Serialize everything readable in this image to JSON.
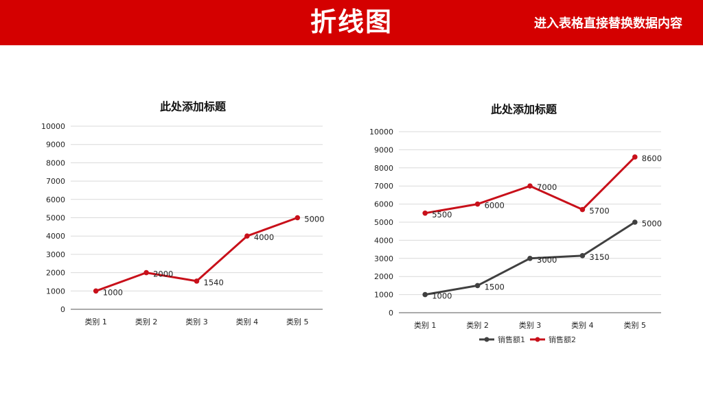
{
  "header": {
    "title": "折线图",
    "subtitle": "进入表格直接替换数据内容",
    "bg_color": "#d40000"
  },
  "chart_data": [
    {
      "type": "line",
      "title": "此处添加标题",
      "categories": [
        "类别 1",
        "类别 2",
        "类别 3",
        "类别 4",
        "类别 5"
      ],
      "ylim": [
        0,
        10000
      ],
      "yticks": [
        "0",
        "1000",
        "2000",
        "3000",
        "4000",
        "5000",
        "6000",
        "7000",
        "8000",
        "9000",
        "10000"
      ],
      "grid": true,
      "legend": false,
      "series": [
        {
          "values": [
            1000,
            2000,
            1540,
            4000,
            5000
          ],
          "labels": [
            "1000",
            "2000",
            "1540",
            "4000",
            "5000"
          ],
          "color": "#c8101a"
        }
      ]
    },
    {
      "type": "line",
      "title": "此处添加标题",
      "categories": [
        "类别 1",
        "类别 2",
        "类别 3",
        "类别 4",
        "类别 5"
      ],
      "ylim": [
        0,
        10000
      ],
      "yticks": [
        "0",
        "1000",
        "2000",
        "3000",
        "4000",
        "5000",
        "6000",
        "7000",
        "8000",
        "9000",
        "10000"
      ],
      "grid": true,
      "legend": "bottom",
      "series": [
        {
          "name": "销售额1",
          "values": [
            1000,
            1500,
            3000,
            3150,
            5000
          ],
          "labels": [
            "1000",
            "1500",
            "3000",
            "3150",
            "5000"
          ],
          "color": "#404040"
        },
        {
          "name": "销售额2",
          "values": [
            5500,
            6000,
            7000,
            5700,
            8600
          ],
          "labels": [
            "5500",
            "6000",
            "7000",
            "5700",
            "8600"
          ],
          "color": "#c8101a"
        }
      ]
    }
  ]
}
